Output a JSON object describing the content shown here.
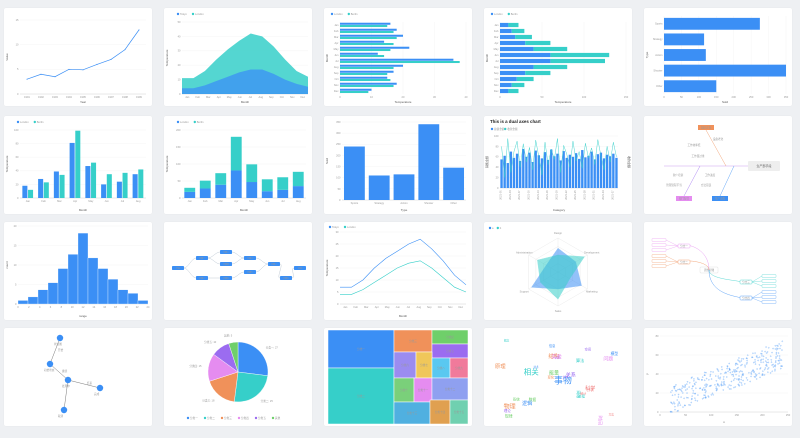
{
  "colors": {
    "blue": "#3b8ff5",
    "teal": "#36cfc9",
    "orange": "#f0915a",
    "green": "#6fcf6a",
    "purple": "#9b6cf0",
    "pink": "#e58cf0",
    "grid": "#eeeeee",
    "axis": "#cccccc"
  },
  "chart_data": [
    {
      "type": "line",
      "xlabel": "Year",
      "ylabel": "Value",
      "categories": [
        "1991",
        "1992",
        "1993",
        "1994",
        "1995",
        "1996",
        "1997",
        "1998",
        "1999"
      ],
      "yticks": [
        "0",
        "5",
        "10",
        "15"
      ],
      "values": [
        3,
        4,
        3.5,
        5,
        4.9,
        6,
        7,
        9,
        13
      ],
      "ylim": [
        0,
        15
      ]
    },
    {
      "type": "area",
      "legend": [
        "Tokyo",
        "London"
      ],
      "xlabel": "Month",
      "ylabel": "Temperature",
      "categories": [
        "Jan",
        "Feb",
        "Mar",
        "Apr",
        "May",
        "Jun",
        "Jul",
        "Aug",
        "Sep",
        "Oct",
        "Nov",
        "Dec"
      ],
      "yticks": [
        "0",
        "10",
        "20",
        "30",
        "40",
        "50"
      ],
      "ylim": [
        0,
        50
      ],
      "series": [
        {
          "name": "Tokyo",
          "values": [
            7,
            7,
            10,
            15,
            19,
            22,
            25,
            23,
            19,
            14,
            9,
            7
          ]
        },
        {
          "name": "London",
          "values": [
            4,
            4,
            6,
            9,
            12,
            15,
            17,
            17,
            14,
            10,
            7,
            5
          ]
        }
      ]
    },
    {
      "type": "bar",
      "orientation": "horizontal",
      "legend": [
        "London",
        "Berlin"
      ],
      "xlabel": "Temperature",
      "ylabel": "Month",
      "categories": [
        "Jan",
        "Feb",
        "Mar",
        "Apr",
        "May",
        "Jun",
        "Jul",
        "Aug",
        "Sep",
        "Oct",
        "Nov",
        "Dec"
      ],
      "xticks": [
        "0",
        "10",
        "20",
        "30",
        "40"
      ],
      "xlim": [
        0,
        40
      ],
      "series": [
        {
          "name": "London",
          "values": [
            16,
            18,
            20,
            14,
            22,
            12,
            36,
            20,
            17,
            15,
            18,
            10
          ]
        },
        {
          "name": "Berlin",
          "values": [
            15,
            17,
            18,
            17,
            16,
            14,
            38,
            17,
            15,
            16,
            17,
            9
          ]
        }
      ]
    },
    {
      "type": "bar",
      "orientation": "horizontal",
      "stacked": true,
      "legend": [
        "London",
        "Berlin"
      ],
      "xlabel": "Temperature",
      "ylabel": "Month",
      "categories": [
        "Jan",
        "Feb",
        "Mar",
        "Apr",
        "May",
        "Jun",
        "Jul",
        "Aug",
        "Sep",
        "Oct",
        "Nov",
        "Dec"
      ],
      "xticks": [
        "0",
        "50",
        "100",
        "150"
      ],
      "xlim": [
        0,
        150
      ],
      "series": [
        {
          "name": "London",
          "values": [
            10,
            14,
            18,
            30,
            40,
            60,
            60,
            40,
            30,
            20,
            14,
            10
          ]
        },
        {
          "name": "Berlin",
          "values": [
            12,
            15,
            20,
            30,
            40,
            70,
            65,
            40,
            30,
            20,
            15,
            12
          ]
        }
      ]
    },
    {
      "type": "bar",
      "orientation": "horizontal",
      "xlabel": "Sold",
      "ylabel": "Type",
      "categories": [
        "Sports",
        "Strategy",
        "Action",
        "Shooter",
        "Other"
      ],
      "xticks": [
        "0",
        "50",
        "100",
        "150",
        "200",
        "250",
        "300",
        "350"
      ],
      "xlim": [
        0,
        350
      ],
      "values": [
        275,
        115,
        120,
        350,
        150
      ]
    },
    {
      "type": "bar",
      "legend": [
        "London",
        "Berlin"
      ],
      "xlabel": "Month",
      "ylabel": "Temperature",
      "categories": [
        "Jan",
        "Feb",
        "Mar",
        "Apr",
        "May",
        "Jun",
        "Jul",
        "Aug"
      ],
      "yticks": [
        "0",
        "20",
        "40",
        "60",
        "80",
        "100"
      ],
      "ylim": [
        0,
        100
      ],
      "series": [
        {
          "name": "London",
          "values": [
            18,
            28,
            39,
            81,
            47,
            20,
            24,
            35
          ]
        },
        {
          "name": "Berlin",
          "values": [
            12,
            23,
            34,
            99,
            52,
            35,
            37,
            42
          ]
        }
      ]
    },
    {
      "type": "bar",
      "stacked": true,
      "legend": [
        "London",
        "Berlin"
      ],
      "xlabel": "Month",
      "ylabel": "Temperature",
      "categories": [
        "Jan",
        "Feb",
        "Mar",
        "Apr",
        "May",
        "Jun",
        "Jul",
        "Aug"
      ],
      "yticks": [
        "0",
        "50",
        "100",
        "150",
        "200"
      ],
      "ylim": [
        0,
        200
      ],
      "series": [
        {
          "name": "London",
          "values": [
            18,
            28,
            39,
            81,
            47,
            20,
            24,
            35
          ]
        },
        {
          "name": "Berlin",
          "values": [
            12,
            23,
            34,
            99,
            52,
            35,
            37,
            42
          ]
        }
      ]
    },
    {
      "type": "bar",
      "xlabel": "Type",
      "ylabel": "Sold",
      "categories": [
        "Sports",
        "Strategy",
        "Action",
        "Shooter",
        "Other"
      ],
      "yticks": [
        "0",
        "50",
        "100",
        "150",
        "200",
        "250",
        "300",
        "350"
      ],
      "ylim": [
        0,
        350
      ],
      "values": [
        240,
        110,
        115,
        340,
        145
      ]
    },
    {
      "type": "bar",
      "title": "This is a dual axes chart",
      "legend": [
        "总额金额",
        "收款金额"
      ],
      "xlabel": "Category",
      "ylabel": "销售金额",
      "ylabel2": "收款金额",
      "yticks": [
        "0",
        "20",
        "40",
        "60",
        "80",
        "100"
      ],
      "ylim": [
        0,
        100
      ],
      "values": [
        55,
        62,
        48,
        70,
        58,
        66,
        52,
        75,
        60,
        68,
        50,
        72,
        63,
        57,
        69,
        54,
        74,
        61,
        66,
        53,
        71,
        58,
        64,
        60,
        67,
        56,
        73,
        59,
        62,
        70,
        55,
        65,
        68,
        57,
        64,
        61,
        66,
        58
      ],
      "line": [
        80,
        20,
        95,
        30,
        70,
        90,
        40,
        85,
        50,
        78,
        35,
        92,
        60,
        25,
        88,
        45,
        75,
        55,
        95,
        30,
        82,
        65,
        40,
        90,
        52,
        70,
        38,
        86,
        58,
        77,
        45,
        93,
        62,
        35,
        80,
        50,
        88,
        60
      ]
    },
    {
      "type": "diagram",
      "nodes": [
        "生产部手段",
        "工作效率低",
        "工作量过重",
        "缺少培训",
        "管理流程不当",
        "工作进度",
        "方法错误",
        "设备老化"
      ],
      "badges": [
        "加班过多",
        "部门配合",
        "生产流程"
      ]
    },
    {
      "type": "histogram",
      "xlabel": "range",
      "ylabel": "count",
      "yticks": [
        "0",
        "5",
        "10",
        "15",
        "20"
      ],
      "ylim": [
        0,
        22
      ],
      "xticks": [
        "0",
        "2",
        "4",
        "6",
        "8",
        "10",
        "12",
        "14",
        "16",
        "18",
        "20",
        "22",
        "24"
      ],
      "values": [
        1,
        2,
        4,
        6,
        10,
        14,
        20,
        13,
        10,
        7,
        4,
        3,
        1
      ]
    },
    {
      "type": "diagram",
      "nodes": [
        "开始",
        "步骤一",
        "步骤二",
        "步骤三",
        "步骤四",
        "步骤五",
        "步骤六",
        "步骤七",
        "步骤八",
        "步骤九",
        "结束"
      ]
    },
    {
      "type": "line",
      "legend": [
        "Tokyo",
        "London"
      ],
      "xlabel": "Month",
      "ylabel": "Temperature",
      "categories": [
        "Jan",
        "Feb",
        "Mar",
        "Apr",
        "May",
        "Jun",
        "Jul",
        "Aug",
        "Sep",
        "Oct",
        "Nov",
        "Dec"
      ],
      "yticks": [
        "0",
        "5",
        "10",
        "15",
        "20",
        "25",
        "30"
      ],
      "ylim": [
        0,
        30
      ],
      "series": [
        {
          "name": "Tokyo",
          "values": [
            7,
            7,
            10,
            15,
            19,
            22,
            25,
            27,
            23,
            18,
            12,
            8
          ]
        },
        {
          "name": "London",
          "values": [
            4,
            4,
            6,
            9,
            12,
            15,
            17,
            18,
            15,
            11,
            7,
            5
          ]
        }
      ]
    },
    {
      "type": "radar",
      "legend": [
        "a",
        "b"
      ],
      "axes": [
        "Design",
        "Development",
        "Marketing",
        "Sales",
        "Support",
        "Administration"
      ],
      "series": [
        {
          "name": "a",
          "values": [
            70,
            60,
            80,
            50,
            90,
            40
          ]
        },
        {
          "name": "b",
          "values": [
            50,
            90,
            40,
            80,
            60,
            70
          ]
        }
      ]
    },
    {
      "type": "diagram",
      "center": "思维导图",
      "branches": [
        "分支一",
        "分支二",
        "分支三",
        "分支四"
      ]
    },
    {
      "type": "diagram",
      "nodes": [
        "状态图",
        "初始状态",
        "处理中",
        "完成",
        "取消"
      ],
      "edges": [
        "开始",
        "继续",
        "结束"
      ]
    },
    {
      "type": "pie",
      "categories": [
        "分类一",
        "分类二",
        "分类三",
        "分类四",
        "分类五",
        "其他"
      ],
      "values": [
        27,
        25,
        18,
        15,
        10,
        5
      ],
      "slice_labels": [
        "分类一: 27",
        "分类二: 25",
        "分类三: 18",
        "分类四: 15",
        "分类五: 10",
        "其他: 5"
      ]
    },
    {
      "type": "treemap",
      "categories": [
        "分类一",
        "分类二",
        "分类三",
        "分类四",
        "分类五",
        "分类六",
        "分类七",
        "分类八",
        "分类九",
        "分类十",
        "分类十一",
        "分类十二",
        "分类十三",
        "分类十四",
        "分类十五"
      ],
      "values": [
        40,
        25,
        12,
        10,
        8,
        8,
        7,
        6,
        5,
        5,
        4,
        4,
        3,
        3,
        3
      ]
    },
    {
      "type": "wordcloud",
      "words": [
        "事物",
        "相关",
        "物理",
        "数据",
        "因果",
        "力学",
        "方法",
        "模型",
        "算法",
        "结构",
        "系统",
        "理论",
        "实验",
        "分析",
        "信息",
        "网络",
        "变化",
        "能量",
        "空间",
        "时间",
        "科学",
        "技术",
        "过程",
        "原理",
        "规律",
        "关系",
        "问题",
        "统计",
        "逻辑",
        "概念"
      ]
    },
    {
      "type": "scatter",
      "xlabel": "x",
      "ylabel": "y",
      "xticks": [
        "0",
        "50",
        "100",
        "150",
        "200",
        "250"
      ],
      "yticks": [
        "0",
        "20",
        "40",
        "60",
        "80"
      ],
      "xlim": [
        0,
        250
      ],
      "ylim": [
        0,
        80
      ]
    }
  ]
}
